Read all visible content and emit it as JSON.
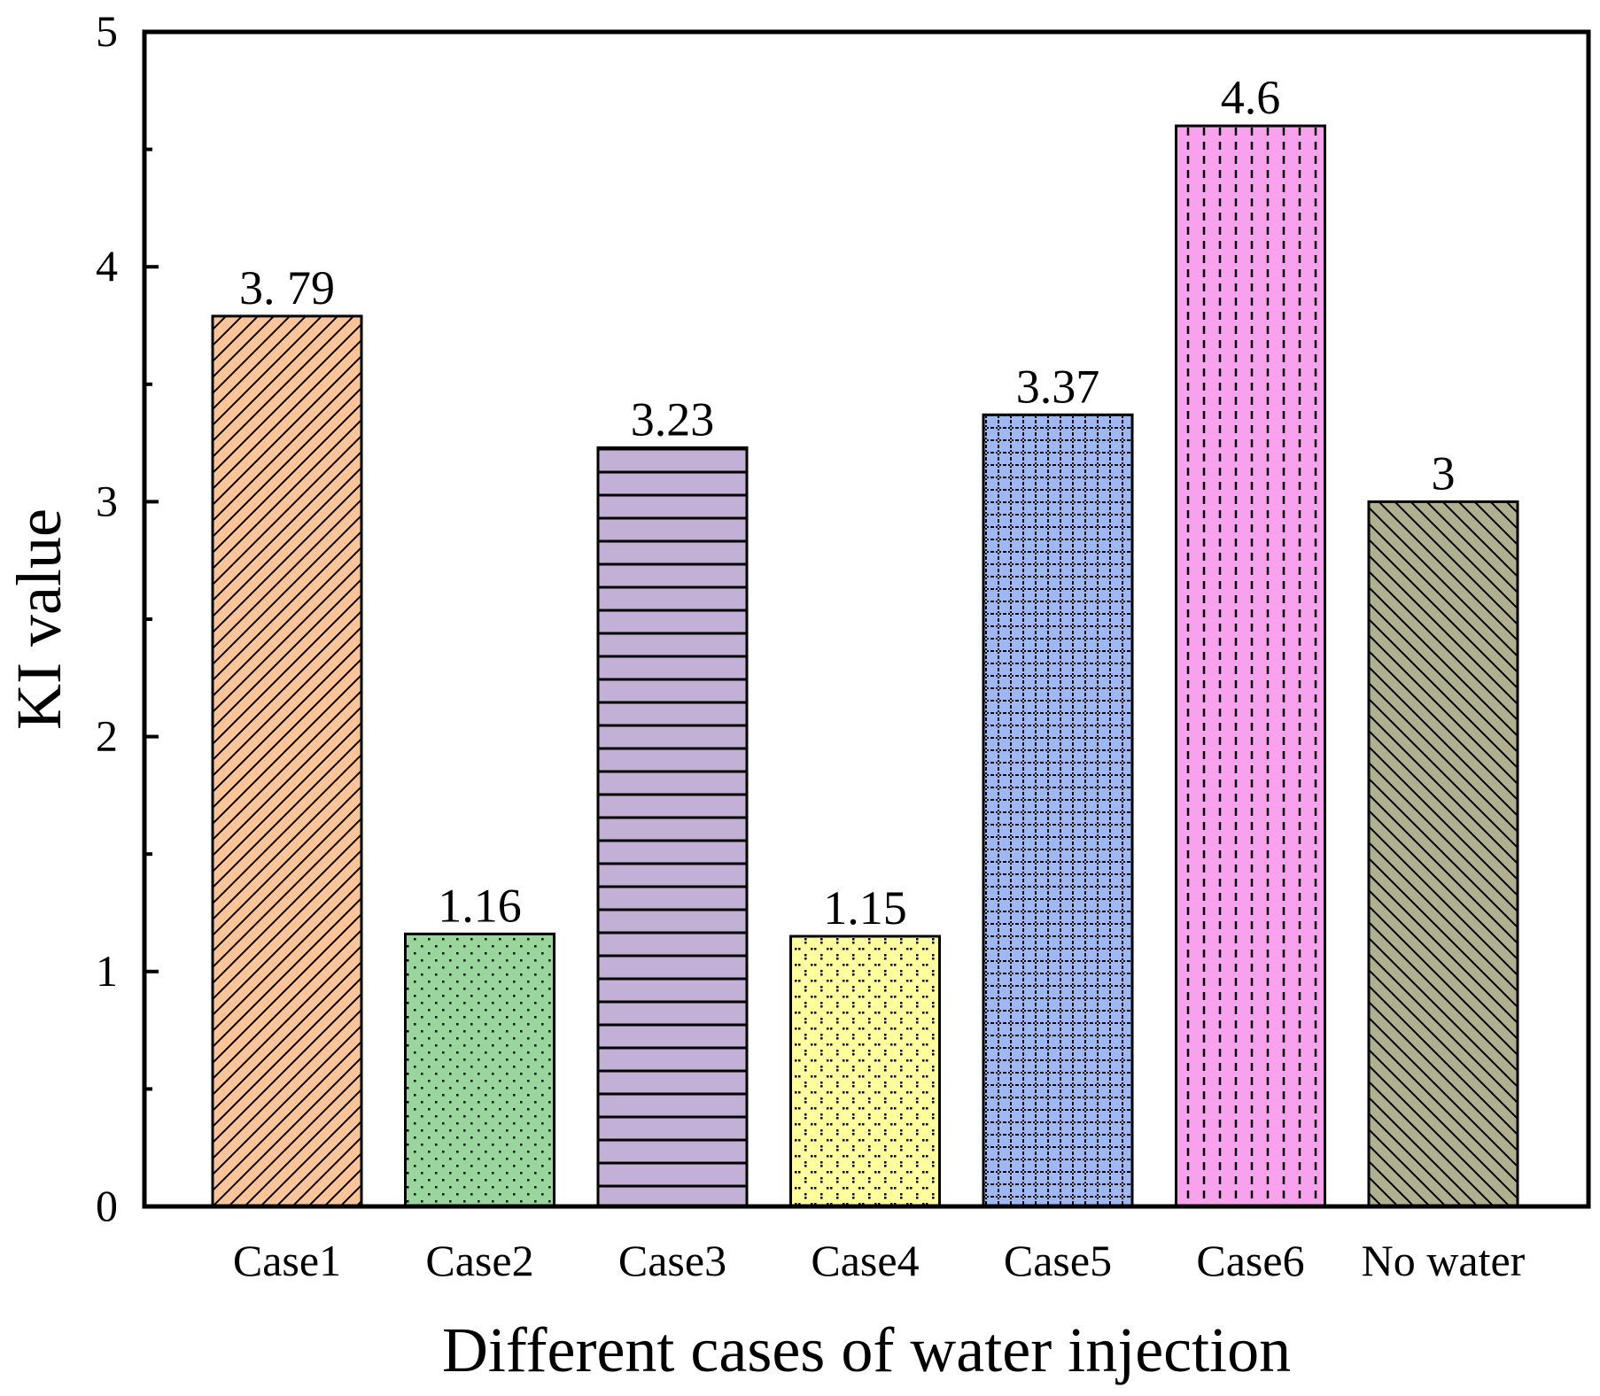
{
  "chart_data": {
    "type": "bar",
    "title": "",
    "xlabel": "Different cases of water injection",
    "ylabel": "KI value",
    "ylim": [
      0,
      5
    ],
    "yticks": [
      "0",
      "1",
      "2",
      "3",
      "4",
      "5"
    ],
    "minor_ticks": true,
    "grid": false,
    "legend": "none",
    "categories": [
      "Case1",
      "Case2",
      "Case3",
      "Case4",
      "Case5",
      "Case6",
      "No water"
    ],
    "values": [
      3.79,
      1.16,
      3.23,
      1.15,
      3.37,
      4.6,
      3
    ],
    "value_labels": [
      "3. 79",
      "1.16",
      "3.23",
      "1.15",
      "3.37",
      "4.6",
      "3"
    ],
    "bar_colors": [
      "#FDC597",
      "#98D69B",
      "#C2B0D6",
      "#FEFE9C",
      "#9EB8F4",
      "#F8A2EE",
      "#B0B08E"
    ],
    "bar_patterns": [
      "diagonal-forward",
      "dots",
      "horizontal-lines",
      "diamond-dots",
      "grid-dotted",
      "vertical-dashed",
      "diagonal-back"
    ]
  }
}
